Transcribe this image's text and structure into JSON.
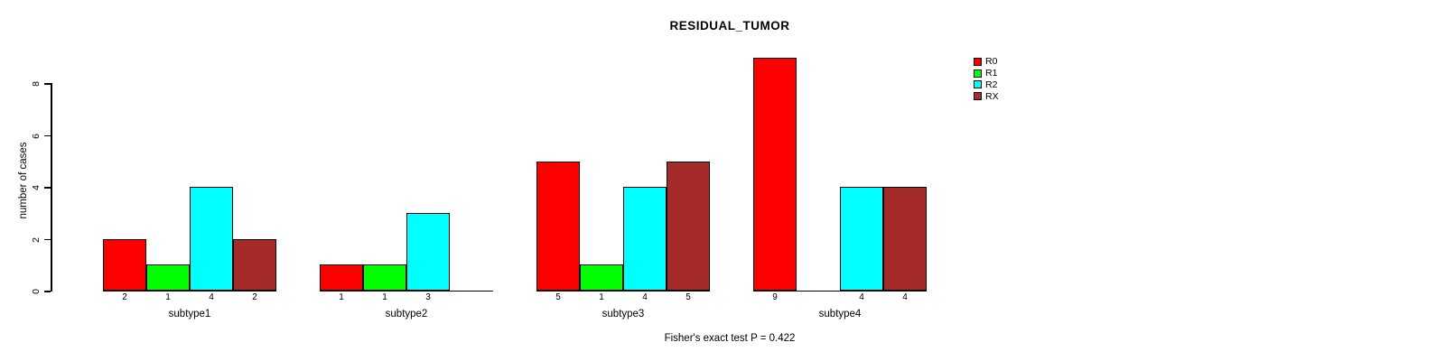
{
  "title": "RESIDUAL_TUMOR",
  "caption": "Fisher's exact test P = 0.422",
  "chart_data": {
    "type": "bar",
    "title": "RESIDUAL_TUMOR",
    "xlabel": "",
    "ylabel": "number of cases",
    "categories": [
      "subtype1",
      "subtype2",
      "subtype3",
      "subtype4"
    ],
    "series": [
      {
        "name": "R0",
        "color": "#ff0000",
        "values": [
          2,
          1,
          5,
          9
        ]
      },
      {
        "name": "R1",
        "color": "#00ff00",
        "values": [
          1,
          1,
          1,
          0
        ]
      },
      {
        "name": "R2",
        "color": "#00ffff",
        "values": [
          4,
          3,
          4,
          4
        ]
      },
      {
        "name": "RX",
        "color": "#a52a2a",
        "values": [
          2,
          0,
          5,
          4
        ]
      }
    ],
    "bar_value_labels": [
      [
        "2",
        "1",
        "4",
        "2"
      ],
      [
        "1",
        "1",
        "3",
        ""
      ],
      [
        "5",
        "1",
        "4",
        "5"
      ],
      [
        "9",
        "",
        "4",
        "4"
      ]
    ],
    "yticks": [
      0,
      2,
      4,
      6,
      8
    ],
    "ylim": [
      0,
      9
    ],
    "grid": false,
    "legend_position": "top-right",
    "legend_entries": [
      "R0",
      "R1",
      "R2",
      "RX"
    ],
    "annotation": "Fisher's exact test P = 0.422",
    "bar_border_color": "#000000",
    "background_color": "#ffffff"
  }
}
